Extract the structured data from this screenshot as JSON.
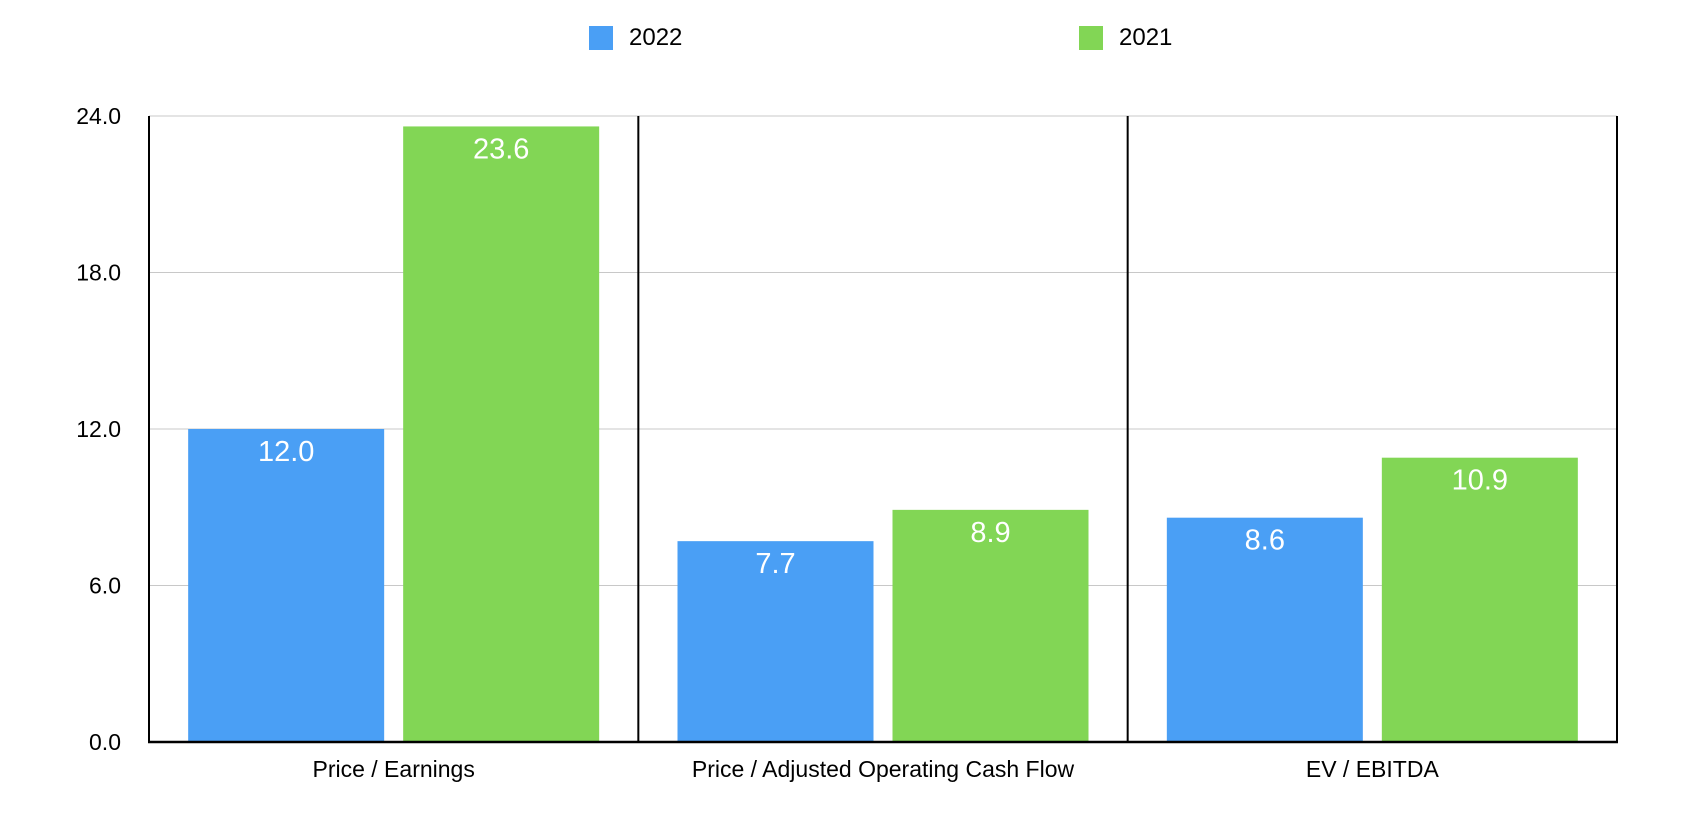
{
  "chart_data": {
    "type": "bar",
    "title": "",
    "xlabel": "",
    "ylabel": "",
    "categories": [
      "Price / Earnings",
      "Price / Adjusted Operating Cash Flow",
      "EV / EBITDA"
    ],
    "series": [
      {
        "name": "2022",
        "color": "#4a9ff5",
        "values": [
          12.0,
          7.7,
          8.6
        ],
        "labels": [
          "12.0",
          "7.7",
          "8.6"
        ]
      },
      {
        "name": "2021",
        "color": "#82d655",
        "values": [
          23.6,
          8.9,
          10.9
        ],
        "labels": [
          "23.6",
          "8.9",
          "10.9"
        ]
      }
    ],
    "ylim": [
      0,
      24
    ],
    "yticks": [
      "0.0",
      "6.0",
      "12.0",
      "18.0",
      "24.0"
    ],
    "ytick_values": [
      0,
      6,
      12,
      18,
      24
    ],
    "grid": true,
    "legend_position": "top-center",
    "data_labels_position": "inside-top"
  }
}
